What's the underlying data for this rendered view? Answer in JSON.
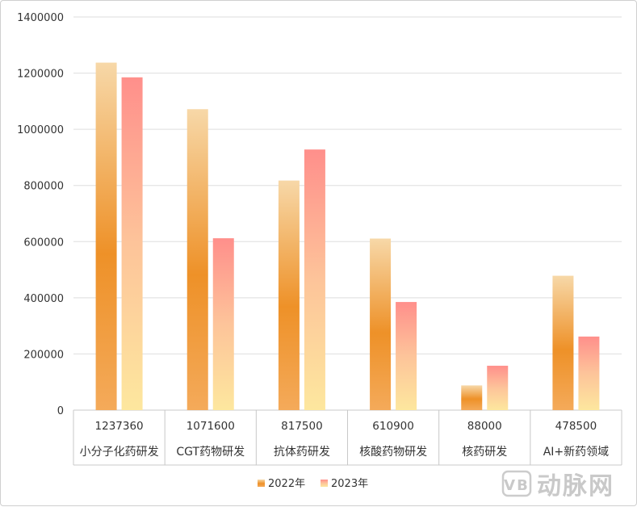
{
  "chart_data": {
    "type": "bar",
    "title": "",
    "xlabel": "",
    "ylabel": "",
    "ylim": [
      0,
      1400000
    ],
    "yticks": [
      0,
      200000,
      400000,
      600000,
      800000,
      1000000,
      1200000,
      1400000
    ],
    "ytick_labels": [
      "0",
      "200000",
      "400000",
      "600000",
      "800000",
      "1000000",
      "1200000",
      "1400000"
    ],
    "grid": true,
    "legend_position": "bottom",
    "categories": [
      "小分子化药研发",
      "CGT药物研发",
      "抗体药研发",
      "核酸药物研发",
      "核药研发",
      "AI+新药领域"
    ],
    "data_table_values": [
      "1237360",
      "1071600",
      "817500",
      "610900",
      "88000",
      "478500"
    ],
    "series": [
      {
        "name": "2022年",
        "values": [
          1237360,
          1071600,
          817500,
          610900,
          88000,
          478500
        ],
        "colors": {
          "top": "#f7d8a8",
          "mid": "#ee9128",
          "bottom": "#f4aa5a"
        }
      },
      {
        "name": "2023年",
        "values": [
          1185000,
          612000,
          928000,
          385000,
          158000,
          262000
        ],
        "colors": {
          "top": "#ff8f8b",
          "mid": "#fdc49a",
          "bottom": "#fde79e"
        }
      }
    ]
  },
  "watermark": {
    "logo_text": "VB",
    "text": "动脉网"
  }
}
